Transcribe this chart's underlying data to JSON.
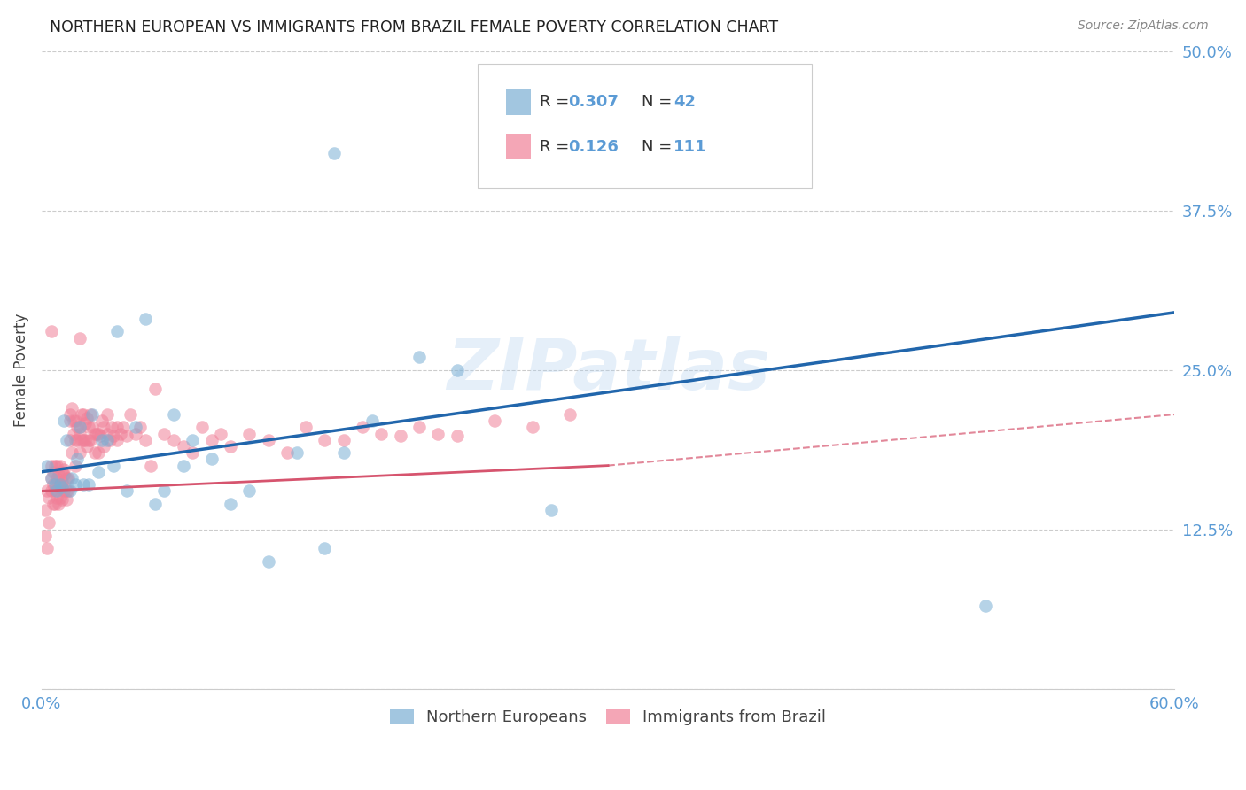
{
  "title": "NORTHERN EUROPEAN VS IMMIGRANTS FROM BRAZIL FEMALE POVERTY CORRELATION CHART",
  "source": "Source: ZipAtlas.com",
  "ylabel": "Female Poverty",
  "xlim": [
    0.0,
    0.6
  ],
  "ylim": [
    0.0,
    0.5
  ],
  "ytick_vals": [
    0.0,
    0.125,
    0.25,
    0.375,
    0.5
  ],
  "ytick_labels": [
    "",
    "12.5%",
    "25.0%",
    "37.5%",
    "50.0%"
  ],
  "xtick_vals": [
    0.0,
    0.1,
    0.2,
    0.3,
    0.4,
    0.5,
    0.6
  ],
  "xtick_labels": [
    "0.0%",
    "",
    "",
    "",
    "",
    "",
    "60.0%"
  ],
  "legend1_label": "Northern Europeans",
  "legend2_label": "Immigrants from Brazil",
  "r1": 0.307,
  "n1": 42,
  "r2": 0.126,
  "n2": 111,
  "color1": "#7BAFD4",
  "color2": "#F08098",
  "trend1_color": "#2166AC",
  "trend2_color": "#D6546E",
  "background_color": "#FFFFFF",
  "watermark": "ZIPatlas",
  "tick_color": "#5B9BD5",
  "grid_color": "#CCCCCC",
  "trend1_start_y": 0.17,
  "trend1_end_y": 0.295,
  "trend2_start_y": 0.155,
  "trend2_end_y": 0.175,
  "trend2_dash_end_y": 0.215
}
